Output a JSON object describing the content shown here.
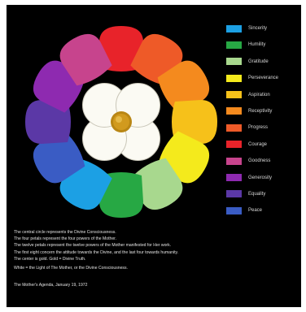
{
  "petals": [
    {
      "name": "Sincerity",
      "color": "#1ca0e4"
    },
    {
      "name": "Humility",
      "color": "#27a844"
    },
    {
      "name": "Gratitude",
      "color": "#a8d88e"
    },
    {
      "name": "Perseverance",
      "color": "#f4ea1c"
    },
    {
      "name": "Aspiration",
      "color": "#f6c11a"
    },
    {
      "name": "Receptivity",
      "color": "#f48a1e"
    },
    {
      "name": "Progress",
      "color": "#ee5a28"
    },
    {
      "name": "Courage",
      "color": "#e8232a"
    },
    {
      "name": "Goodness",
      "color": "#c7448d"
    },
    {
      "name": "Generosity",
      "color": "#8e2ab0"
    },
    {
      "name": "Equality",
      "color": "#5b38a6"
    },
    {
      "name": "Peace",
      "color": "#3a5cc4"
    }
  ],
  "caption": {
    "line1": "The central circle represents the Divine Consciousness.",
    "line2": "The four petals represent the four powers of the Mother.",
    "line3": "The twelve petals represent the twelve powers of the Mother manifested for Her work.",
    "line4": "The first eight concern the attitude towards the Divine, and the last four towards humanity.",
    "line5": "The center is gold. Gold = Divine Truth.",
    "line6": "White = the Light of The Mother, or the Divine Consciousness."
  },
  "source": "The Mother's Agenda, January 19, 1972",
  "colors": {
    "background": "#000000",
    "inner_petal": "#fbfaf3",
    "center_gold": "#d19a1e",
    "text": "#e2e2e2"
  }
}
